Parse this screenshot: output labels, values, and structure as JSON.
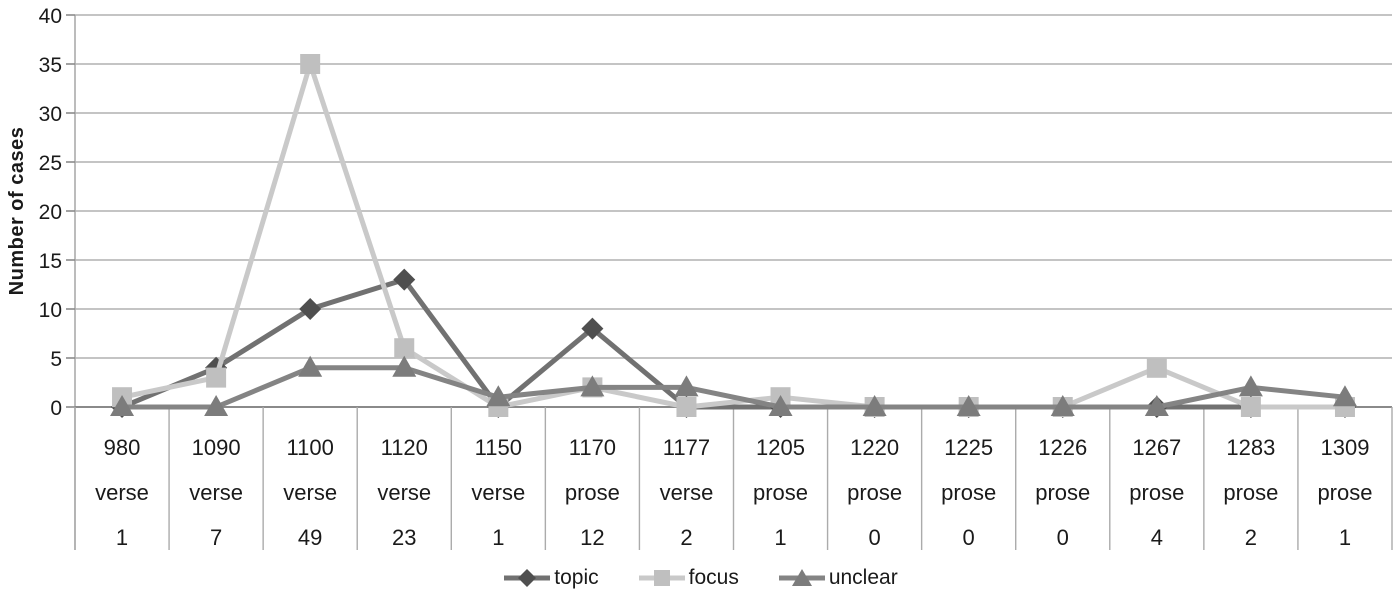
{
  "chart_data": {
    "type": "line",
    "title": "",
    "ylabel": "Number of cases",
    "xlabel": "",
    "ylim": [
      0,
      40
    ],
    "yticks": [
      0,
      5,
      10,
      15,
      20,
      25,
      30,
      35,
      40
    ],
    "grid": true,
    "legend_position": "bottom",
    "categories": [
      {
        "year": "980",
        "form": "verse",
        "total": "1"
      },
      {
        "year": "1090",
        "form": "verse",
        "total": "7"
      },
      {
        "year": "1100",
        "form": "verse",
        "total": "49"
      },
      {
        "year": "1120",
        "form": "verse",
        "total": "23"
      },
      {
        "year": "1150",
        "form": "verse",
        "total": "1"
      },
      {
        "year": "1170",
        "form": "prose",
        "total": "12"
      },
      {
        "year": "1177",
        "form": "verse",
        "total": "2"
      },
      {
        "year": "1205",
        "form": "prose",
        "total": "1"
      },
      {
        "year": "1220",
        "form": "prose",
        "total": "0"
      },
      {
        "year": "1225",
        "form": "prose",
        "total": "0"
      },
      {
        "year": "1226",
        "form": "prose",
        "total": "0"
      },
      {
        "year": "1267",
        "form": "prose",
        "total": "4"
      },
      {
        "year": "1283",
        "form": "prose",
        "total": "2"
      },
      {
        "year": "1309",
        "form": "prose",
        "total": "1"
      }
    ],
    "series": [
      {
        "name": "topic",
        "marker": "diamond",
        "line_color": "#717171",
        "marker_color": "#4f4f4f",
        "values": [
          0,
          4,
          10,
          13,
          0,
          8,
          0,
          0,
          0,
          0,
          0,
          0,
          0,
          0
        ]
      },
      {
        "name": "focus",
        "marker": "square",
        "line_color": "#c9c9c9",
        "marker_color": "#bfbfbf",
        "values": [
          1,
          3,
          35,
          6,
          0,
          2,
          0,
          1,
          0,
          0,
          0,
          4,
          0,
          0
        ]
      },
      {
        "name": "unclear",
        "marker": "triangle",
        "line_color": "#848484",
        "marker_color": "#7c7c7c",
        "values": [
          0,
          0,
          4,
          4,
          1,
          2,
          2,
          0,
          0,
          0,
          0,
          0,
          2,
          1
        ]
      }
    ]
  },
  "colors": {
    "gridline": "#b0b0b0",
    "axis_line": "#8a8a8a",
    "separator": "#ababab",
    "text": "#1a1a1a",
    "background": "#ffffff"
  }
}
